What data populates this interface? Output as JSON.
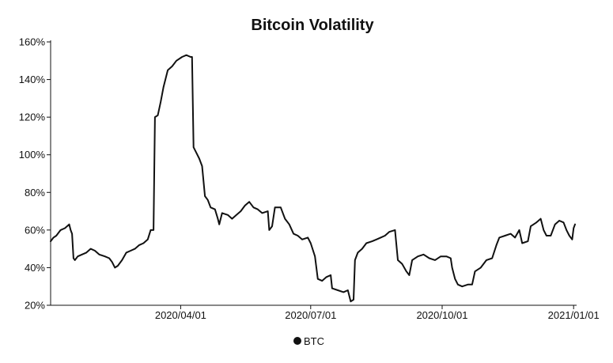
{
  "chart_data": {
    "type": "line",
    "title": "Bitcoin Volatility",
    "xlabel": "",
    "ylabel": "",
    "x_range": [
      "2020-01-01",
      "2021-01-02"
    ],
    "ylim": [
      20,
      160
    ],
    "y_ticks": [
      20,
      40,
      60,
      80,
      100,
      120,
      140,
      160
    ],
    "y_tick_labels": [
      "20%",
      "40%",
      "60%",
      "80%",
      "100%",
      "120%",
      "140%",
      "160%"
    ],
    "x_ticks": [
      "2020-04-01",
      "2020-07-01",
      "2020-10-01",
      "2021-01-01"
    ],
    "x_tick_labels": [
      "2020/04/01",
      "2020/07/01",
      "2020/10/01",
      "2021/01/01"
    ],
    "grid": false,
    "legend": {
      "position": "bottom-center",
      "entries": [
        "BTC"
      ]
    },
    "series": [
      {
        "name": "BTC",
        "color": "#111111",
        "points": [
          [
            "2020-01-01",
            54
          ],
          [
            "2020-01-03",
            56
          ],
          [
            "2020-01-05",
            57
          ],
          [
            "2020-01-08",
            60
          ],
          [
            "2020-01-11",
            61
          ],
          [
            "2020-01-14",
            63
          ],
          [
            "2020-01-15",
            60
          ],
          [
            "2020-01-16",
            58
          ],
          [
            "2020-01-17",
            45
          ],
          [
            "2020-01-18",
            44
          ],
          [
            "2020-01-20",
            46
          ],
          [
            "2020-01-23",
            47
          ],
          [
            "2020-01-26",
            48
          ],
          [
            "2020-01-29",
            50
          ],
          [
            "2020-02-01",
            49
          ],
          [
            "2020-02-04",
            47
          ],
          [
            "2020-02-08",
            46
          ],
          [
            "2020-02-11",
            45
          ],
          [
            "2020-02-13",
            43
          ],
          [
            "2020-02-15",
            40
          ],
          [
            "2020-02-17",
            41
          ],
          [
            "2020-02-20",
            44
          ],
          [
            "2020-02-23",
            48
          ],
          [
            "2020-02-26",
            49
          ],
          [
            "2020-02-29",
            50
          ],
          [
            "2020-03-03",
            52
          ],
          [
            "2020-03-06",
            53
          ],
          [
            "2020-03-09",
            55
          ],
          [
            "2020-03-11",
            60
          ],
          [
            "2020-03-13",
            60
          ],
          [
            "2020-03-14",
            120
          ],
          [
            "2020-03-16",
            121
          ],
          [
            "2020-03-18",
            128
          ],
          [
            "2020-03-20",
            136
          ],
          [
            "2020-03-23",
            145
          ],
          [
            "2020-03-26",
            147
          ],
          [
            "2020-03-29",
            150
          ],
          [
            "2020-04-02",
            152
          ],
          [
            "2020-04-05",
            153
          ],
          [
            "2020-04-08",
            152
          ],
          [
            "2020-04-09",
            152
          ],
          [
            "2020-04-10",
            104
          ],
          [
            "2020-04-12",
            101
          ],
          [
            "2020-04-14",
            98
          ],
          [
            "2020-04-16",
            94
          ],
          [
            "2020-04-17",
            86
          ],
          [
            "2020-04-18",
            78
          ],
          [
            "2020-04-20",
            76
          ],
          [
            "2020-04-22",
            72
          ],
          [
            "2020-04-25",
            71
          ],
          [
            "2020-04-27",
            66
          ],
          [
            "2020-04-28",
            63
          ],
          [
            "2020-04-30",
            69
          ],
          [
            "2020-05-04",
            68
          ],
          [
            "2020-05-07",
            66
          ],
          [
            "2020-05-10",
            68
          ],
          [
            "2020-05-13",
            70
          ],
          [
            "2020-05-16",
            73
          ],
          [
            "2020-05-19",
            75
          ],
          [
            "2020-05-22",
            72
          ],
          [
            "2020-05-25",
            71
          ],
          [
            "2020-05-28",
            69
          ],
          [
            "2020-06-01",
            70
          ],
          [
            "2020-06-02",
            60
          ],
          [
            "2020-06-04",
            62
          ],
          [
            "2020-06-06",
            72
          ],
          [
            "2020-06-10",
            72
          ],
          [
            "2020-06-13",
            66
          ],
          [
            "2020-06-16",
            63
          ],
          [
            "2020-06-19",
            58
          ],
          [
            "2020-06-22",
            57
          ],
          [
            "2020-06-25",
            55
          ],
          [
            "2020-06-29",
            56
          ],
          [
            "2020-07-01",
            53
          ],
          [
            "2020-07-04",
            46
          ],
          [
            "2020-07-06",
            34
          ],
          [
            "2020-07-09",
            33
          ],
          [
            "2020-07-12",
            35
          ],
          [
            "2020-07-15",
            36
          ],
          [
            "2020-07-16",
            29
          ],
          [
            "2020-07-20",
            28
          ],
          [
            "2020-07-24",
            27
          ],
          [
            "2020-07-27",
            28
          ],
          [
            "2020-07-29",
            22
          ],
          [
            "2020-07-31",
            23
          ],
          [
            "2020-08-01",
            44
          ],
          [
            "2020-08-03",
            48
          ],
          [
            "2020-08-06",
            50
          ],
          [
            "2020-08-09",
            53
          ],
          [
            "2020-08-13",
            54
          ],
          [
            "2020-08-16",
            55
          ],
          [
            "2020-08-19",
            56
          ],
          [
            "2020-08-22",
            57
          ],
          [
            "2020-08-25",
            59
          ],
          [
            "2020-08-29",
            60
          ],
          [
            "2020-08-31",
            44
          ],
          [
            "2020-09-03",
            42
          ],
          [
            "2020-09-06",
            38
          ],
          [
            "2020-09-08",
            36
          ],
          [
            "2020-09-10",
            44
          ],
          [
            "2020-09-14",
            46
          ],
          [
            "2020-09-18",
            47
          ],
          [
            "2020-09-22",
            45
          ],
          [
            "2020-09-26",
            44
          ],
          [
            "2020-09-30",
            46
          ],
          [
            "2020-10-04",
            46
          ],
          [
            "2020-10-07",
            45
          ],
          [
            "2020-10-08",
            40
          ],
          [
            "2020-10-10",
            34
          ],
          [
            "2020-10-12",
            31
          ],
          [
            "2020-10-15",
            30
          ],
          [
            "2020-10-19",
            31
          ],
          [
            "2020-10-22",
            31
          ],
          [
            "2020-10-24",
            38
          ],
          [
            "2020-10-28",
            40
          ],
          [
            "2020-11-01",
            44
          ],
          [
            "2020-11-05",
            45
          ],
          [
            "2020-11-08",
            52
          ],
          [
            "2020-11-10",
            56
          ],
          [
            "2020-11-14",
            57
          ],
          [
            "2020-11-18",
            58
          ],
          [
            "2020-11-21",
            56
          ],
          [
            "2020-11-24",
            60
          ],
          [
            "2020-11-26",
            53
          ],
          [
            "2020-11-30",
            54
          ],
          [
            "2020-12-02",
            62
          ],
          [
            "2020-12-06",
            64
          ],
          [
            "2020-12-09",
            66
          ],
          [
            "2020-12-11",
            60
          ],
          [
            "2020-12-13",
            57
          ],
          [
            "2020-12-16",
            57
          ],
          [
            "2020-12-19",
            63
          ],
          [
            "2020-12-22",
            65
          ],
          [
            "2020-12-25",
            64
          ],
          [
            "2020-12-27",
            60
          ],
          [
            "2020-12-29",
            57
          ],
          [
            "2020-12-31",
            55
          ],
          [
            "2021-01-01",
            61
          ],
          [
            "2021-01-02",
            63
          ]
        ]
      }
    ]
  }
}
